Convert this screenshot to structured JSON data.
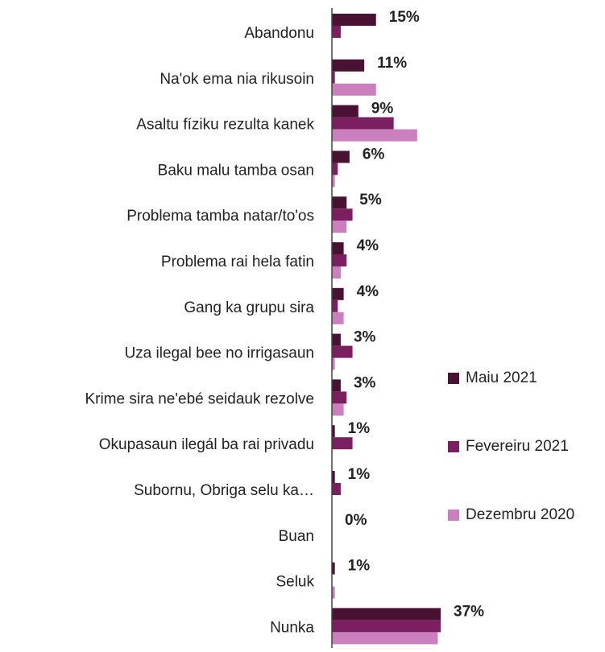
{
  "chart_data": {
    "type": "bar",
    "orientation": "horizontal",
    "categories": [
      "Abandonu",
      "Na'ok ema nia rikusoin",
      "Asaltu fíziku rezulta kanek",
      "Baku malu tamba osan",
      "Problema tamba natar/to'os",
      "Problema rai hela fatin",
      "Gang ka grupu sira",
      "Uza ilegal bee no irrigasaun",
      "Krime sira ne'ebé seidauk rezolve",
      "Okupasaun ilegál ba rai privadu",
      "Subornu, Obriga selu ka…",
      "Buan",
      "Seluk",
      "Nunka"
    ],
    "series": [
      {
        "name": "Maiu 2021",
        "color": "#4a1232",
        "values": [
          15,
          11,
          9,
          6,
          5,
          4,
          4,
          3,
          3,
          1,
          1,
          0,
          1,
          37
        ],
        "value_labels": [
          "15%",
          "11%",
          "9%",
          "6%",
          "5%",
          "4%",
          "4%",
          "3%",
          "3%",
          "1%",
          "1%",
          "0%",
          "1%",
          "37%"
        ]
      },
      {
        "name": "Fevereiru 2021",
        "color": "#7b1f60",
        "values": [
          3,
          1,
          21,
          2,
          7,
          5,
          2,
          7,
          5,
          7,
          3,
          0,
          0,
          37
        ]
      },
      {
        "name": "Dezembru 2020",
        "color": "#cc7fbf",
        "values": [
          0,
          15,
          29,
          1,
          5,
          3,
          4,
          1,
          4,
          0,
          0,
          0,
          1,
          36
        ]
      }
    ],
    "legend": "right"
  }
}
